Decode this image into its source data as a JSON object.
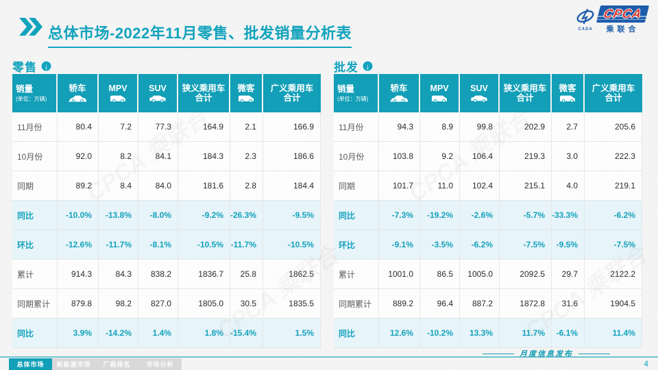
{
  "title": "总体市场-2022年11月零售、批发销量分析表",
  "logo": {
    "abbr": "CPCA",
    "cn": "乘联合",
    "sub": "CADA"
  },
  "columns": [
    {
      "label": "销量",
      "sub": "(单位：万辆)",
      "icon": null
    },
    {
      "label": "轿车",
      "icon": "sedan"
    },
    {
      "label": "MPV",
      "icon": "van"
    },
    {
      "label": "SUV",
      "icon": "suv"
    },
    {
      "label": "狭义乘用车",
      "label2": "合计",
      "icon": null
    },
    {
      "label": "微客",
      "icon": "van"
    },
    {
      "label": "广义乘用车",
      "label2": "合计",
      "icon": null
    }
  ],
  "tables": [
    {
      "name": "零售",
      "rows": [
        {
          "label": "11月份",
          "highlight": false,
          "values": [
            "80.4",
            "7.2",
            "77.3",
            "164.9",
            "2.1",
            "166.9"
          ]
        },
        {
          "label": "10月份",
          "highlight": false,
          "values": [
            "92.0",
            "8.2",
            "84.1",
            "184.3",
            "2.3",
            "186.6"
          ]
        },
        {
          "label": "同期",
          "highlight": false,
          "values": [
            "89.2",
            "8.4",
            "84.0",
            "181.6",
            "2.8",
            "184.4"
          ]
        },
        {
          "label": "同比",
          "highlight": true,
          "values": [
            "-10.0%",
            "-13.8%",
            "-8.0%",
            "-9.2%",
            "-26.3%",
            "-9.5%"
          ]
        },
        {
          "label": "环比",
          "highlight": true,
          "values": [
            "-12.6%",
            "-11.7%",
            "-8.1%",
            "-10.5%",
            "-11.7%",
            "-10.5%"
          ]
        },
        {
          "label": "累计",
          "highlight": false,
          "values": [
            "914.3",
            "84.3",
            "838.2",
            "1836.7",
            "25.8",
            "1862.5"
          ]
        },
        {
          "label": "同期累计",
          "highlight": false,
          "values": [
            "879.8",
            "98.2",
            "827.0",
            "1805.0",
            "30.5",
            "1835.5"
          ]
        },
        {
          "label": "同比",
          "highlight": true,
          "values": [
            "3.9%",
            "-14.2%",
            "1.4%",
            "1.8%",
            "-15.4%",
            "1.5%"
          ]
        }
      ]
    },
    {
      "name": "批发",
      "rows": [
        {
          "label": "11月份",
          "highlight": false,
          "values": [
            "94.3",
            "8.9",
            "99.8",
            "202.9",
            "2.7",
            "205.6"
          ]
        },
        {
          "label": "10月份",
          "highlight": false,
          "values": [
            "103.8",
            "9.2",
            "106.4",
            "219.3",
            "3.0",
            "222.3"
          ]
        },
        {
          "label": "同期",
          "highlight": false,
          "values": [
            "101.7",
            "11.0",
            "102.4",
            "215.1",
            "4.0",
            "219.1"
          ]
        },
        {
          "label": "同比",
          "highlight": true,
          "values": [
            "-7.3%",
            "-19.2%",
            "-2.6%",
            "-5.7%",
            "-33.3%",
            "-6.2%"
          ]
        },
        {
          "label": "环比",
          "highlight": true,
          "values": [
            "-9.1%",
            "-3.5%",
            "-6.2%",
            "-7.5%",
            "-9.5%",
            "-7.5%"
          ]
        },
        {
          "label": "累计",
          "highlight": false,
          "values": [
            "1001.0",
            "86.5",
            "1005.0",
            "2092.5",
            "29.7",
            "2122.2"
          ]
        },
        {
          "label": "同期累计",
          "highlight": false,
          "values": [
            "889.2",
            "96.4",
            "887.2",
            "1872.8",
            "31.6",
            "1904.5"
          ]
        },
        {
          "label": "同比",
          "highlight": true,
          "values": [
            "12.6%",
            "-10.2%",
            "13.3%",
            "11.7%",
            "-6.1%",
            "11.4%"
          ]
        }
      ]
    }
  ],
  "watermark": "CPCA 乘联合",
  "footer": {
    "tabs": [
      {
        "label": "总体市场",
        "active": true
      },
      {
        "label": "新能源市场",
        "active": false
      },
      {
        "label": "厂商排名",
        "active": false
      },
      {
        "label": "市场分析",
        "active": false
      }
    ],
    "publication": "月度信息发布",
    "page": "4"
  }
}
